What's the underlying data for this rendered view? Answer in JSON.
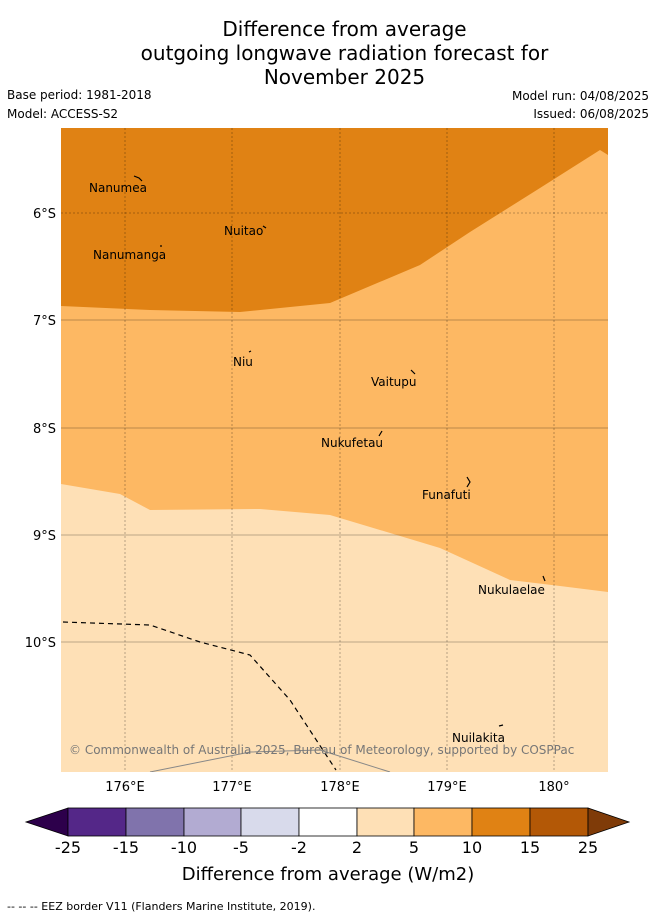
{
  "header": {
    "title_line1": "Difference from average",
    "title_line2": "outgoing longwave radiation forecast for",
    "title_line3": "November 2025",
    "base_period": "Base period: 1981-2018",
    "model": "Model: ACCESS-S2",
    "model_run": "Model run: 04/08/2025",
    "issued": "Issued: 06/08/2025"
  },
  "map": {
    "lon_labels": [
      "176°E",
      "177°E",
      "178°E",
      "179°E",
      "180°"
    ],
    "lat_labels": [
      "6°S",
      "7°S",
      "8°S",
      "9°S",
      "10°S"
    ],
    "places": [
      {
        "name": "Nanumea"
      },
      {
        "name": "Nuitao"
      },
      {
        "name": "Nanumanga"
      },
      {
        "name": "Niu"
      },
      {
        "name": "Vaitupu"
      },
      {
        "name": "Nukufetau"
      },
      {
        "name": "Funafuti"
      },
      {
        "name": "Nukulaelae"
      },
      {
        "name": "Nuilakita"
      }
    ],
    "copyright": "© Commonwealth of Australia 2025, Bureau of Meteorology, supported by COSPPac",
    "band_colors": {
      "10_to_15": "#e08214",
      "5_to_10": "#fdb863",
      "2_to_5": "#fee0b6"
    }
  },
  "colorbar": {
    "ticks": [
      "-25",
      "-15",
      "-10",
      "-5",
      "-2",
      "2",
      "5",
      "10",
      "15",
      "25"
    ],
    "colors": [
      "#542788",
      "#8073ac",
      "#b2abd2",
      "#d8daeb",
      "#ffffff",
      "#fee0b6",
      "#fdb863",
      "#e08214",
      "#b35806"
    ],
    "extend_low_color": "#2d004b",
    "extend_high_color": "#7f3b08",
    "label": "Difference from average (W/m2)"
  },
  "footer": {
    "eez_legend": "--  --  -- EEZ border V11 (Flanders Marine Institute, 2019)."
  }
}
